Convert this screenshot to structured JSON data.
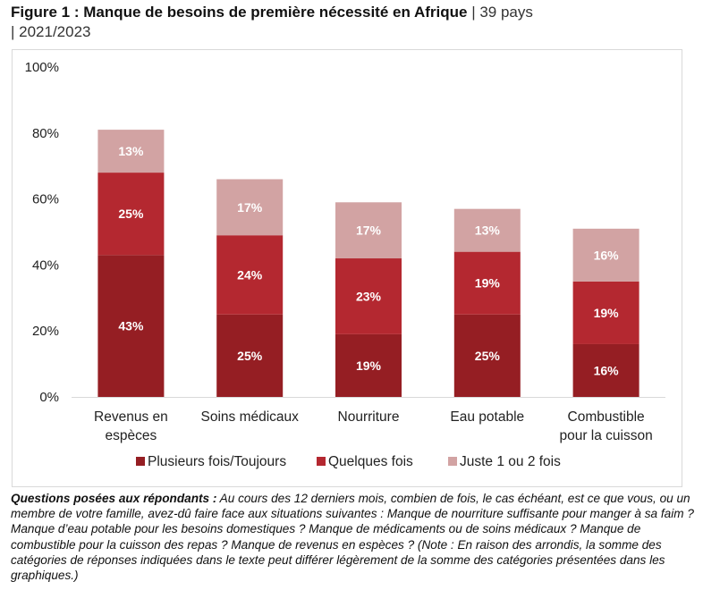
{
  "title": {
    "bold": "Figure 1 : Manque de besoins de première nécessité en Afrique",
    "rest_line1": " | 39 pays",
    "rest_line2": "| 2021/2023"
  },
  "chart_data": {
    "type": "bar",
    "stacked": true,
    "title": "Figure 1 : Manque de besoins de première nécessité en Afrique | 39 pays | 2021/2023",
    "xlabel": "",
    "ylabel": "",
    "ylim": [
      0,
      100
    ],
    "yticks": [
      "0%",
      "20%",
      "40%",
      "60%",
      "80%",
      "100%"
    ],
    "ytick_values": [
      0,
      20,
      40,
      60,
      80,
      100
    ],
    "grid": false,
    "legend_position": "bottom",
    "categories": [
      [
        "Revenus en",
        "espèces"
      ],
      [
        "Soins médicaux"
      ],
      [
        "Nourriture"
      ],
      [
        "Eau potable"
      ],
      [
        "Combustible",
        "pour la cuisson"
      ]
    ],
    "series": [
      {
        "name": "Plusieurs fois/Toujours",
        "color": "#951e23",
        "values": [
          43,
          25,
          19,
          25,
          16
        ],
        "labels": [
          "43%",
          "25%",
          "19%",
          "25%",
          "16%"
        ]
      },
      {
        "name": "Quelques fois",
        "color": "#b42830",
        "values": [
          25,
          24,
          23,
          19,
          19
        ],
        "labels": [
          "25%",
          "24%",
          "23%",
          "19%",
          "19%"
        ]
      },
      {
        "name": "Juste 1 ou 2 fois",
        "color": "#d2a3a3",
        "values": [
          13,
          17,
          17,
          13,
          16
        ],
        "labels": [
          "13%",
          "17%",
          "17%",
          "13%",
          "16%"
        ]
      }
    ]
  },
  "note": {
    "lead": "Questions posées aux répondants :",
    "text": " Au cours des 12 derniers mois, combien de fois, le cas échéant, est ce que vous, ou un membre de votre famille, avez-dû faire face aux situations suivantes : Manque de nourriture suffisante pour manger à sa faim ? Manque d’eau potable pour les besoins domestiques ? Manque de médicaments ou de soins médicaux ? Manque de combustible pour la cuisson des repas ? Manque de revenus en espèces ? (Note : En raison des arrondis, la somme des catégories de réponses indiquées dans le texte peut différer légèrement de la somme des catégories présentées dans les graphiques.)"
  }
}
